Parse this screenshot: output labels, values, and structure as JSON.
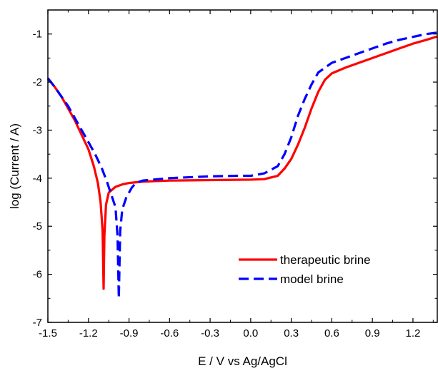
{
  "chart_data": {
    "type": "line",
    "xlabel": "E / V vs Ag/AgCl",
    "ylabel": "log (Current / A)",
    "xlim": [
      -1.5,
      1.38
    ],
    "ylim": [
      -7,
      -0.5
    ],
    "x_ticks": [
      -1.5,
      -1.2,
      -0.9,
      -0.6,
      -0.3,
      0.0,
      0.3,
      0.6,
      0.9,
      1.2
    ],
    "x_tick_labels": [
      "-1.5",
      "-1.2",
      "-0.9",
      "-0.6",
      "-0.3",
      "0.0",
      "0.3",
      "0.6",
      "0.9",
      "1.2"
    ],
    "y_ticks": [
      -7,
      -6,
      -5,
      -4,
      -3,
      -2,
      -1
    ],
    "y_tick_labels": [
      "-7",
      "-6",
      "-5",
      "-4",
      "-3",
      "-2",
      "-1"
    ],
    "grid": false,
    "legend_position": "bottom-right",
    "series": [
      {
        "name": "therapeutic brine",
        "color": "#ff0000",
        "dash": "solid",
        "points": [
          [
            -1.5,
            -1.92
          ],
          [
            -1.45,
            -2.1
          ],
          [
            -1.4,
            -2.3
          ],
          [
            -1.35,
            -2.55
          ],
          [
            -1.3,
            -2.8
          ],
          [
            -1.25,
            -3.1
          ],
          [
            -1.2,
            -3.4
          ],
          [
            -1.16,
            -3.75
          ],
          [
            -1.13,
            -4.1
          ],
          [
            -1.11,
            -4.5
          ],
          [
            -1.095,
            -5.1
          ],
          [
            -1.088,
            -6.3
          ],
          [
            -1.082,
            -5.2
          ],
          [
            -1.07,
            -4.55
          ],
          [
            -1.05,
            -4.3
          ],
          [
            -1.0,
            -4.18
          ],
          [
            -0.95,
            -4.13
          ],
          [
            -0.9,
            -4.1
          ],
          [
            -0.8,
            -4.07
          ],
          [
            -0.6,
            -4.05
          ],
          [
            -0.3,
            -4.04
          ],
          [
            0.0,
            -4.03
          ],
          [
            0.1,
            -4.02
          ],
          [
            0.2,
            -3.95
          ],
          [
            0.25,
            -3.8
          ],
          [
            0.3,
            -3.6
          ],
          [
            0.35,
            -3.3
          ],
          [
            0.4,
            -2.95
          ],
          [
            0.45,
            -2.55
          ],
          [
            0.5,
            -2.2
          ],
          [
            0.55,
            -1.95
          ],
          [
            0.6,
            -1.82
          ],
          [
            0.7,
            -1.7
          ],
          [
            0.8,
            -1.6
          ],
          [
            0.9,
            -1.5
          ],
          [
            1.0,
            -1.4
          ],
          [
            1.1,
            -1.3
          ],
          [
            1.2,
            -1.2
          ],
          [
            1.3,
            -1.12
          ],
          [
            1.38,
            -1.05
          ]
        ]
      },
      {
        "name": "model brine",
        "color": "#0000ff",
        "dash": "dashed",
        "points": [
          [
            -1.5,
            -1.92
          ],
          [
            -1.45,
            -2.1
          ],
          [
            -1.4,
            -2.3
          ],
          [
            -1.35,
            -2.5
          ],
          [
            -1.3,
            -2.75
          ],
          [
            -1.25,
            -3.0
          ],
          [
            -1.2,
            -3.25
          ],
          [
            -1.15,
            -3.5
          ],
          [
            -1.1,
            -3.8
          ],
          [
            -1.06,
            -4.1
          ],
          [
            -1.03,
            -4.35
          ],
          [
            -1.0,
            -4.6
          ],
          [
            -0.985,
            -5.2
          ],
          [
            -0.975,
            -6.5
          ],
          [
            -0.965,
            -5.1
          ],
          [
            -0.95,
            -4.65
          ],
          [
            -0.92,
            -4.4
          ],
          [
            -0.88,
            -4.2
          ],
          [
            -0.85,
            -4.1
          ],
          [
            -0.8,
            -4.05
          ],
          [
            -0.6,
            -4.0
          ],
          [
            -0.3,
            -3.96
          ],
          [
            -0.1,
            -3.95
          ],
          [
            0.0,
            -3.95
          ],
          [
            0.1,
            -3.9
          ],
          [
            0.2,
            -3.75
          ],
          [
            0.25,
            -3.5
          ],
          [
            0.3,
            -3.15
          ],
          [
            0.35,
            -2.7
          ],
          [
            0.4,
            -2.35
          ],
          [
            0.45,
            -2.05
          ],
          [
            0.5,
            -1.8
          ],
          [
            0.6,
            -1.6
          ],
          [
            0.7,
            -1.5
          ],
          [
            0.8,
            -1.4
          ],
          [
            0.9,
            -1.3
          ],
          [
            1.0,
            -1.2
          ],
          [
            1.1,
            -1.12
          ],
          [
            1.2,
            -1.06
          ],
          [
            1.3,
            -1.0
          ],
          [
            1.38,
            -0.97
          ]
        ]
      }
    ]
  }
}
